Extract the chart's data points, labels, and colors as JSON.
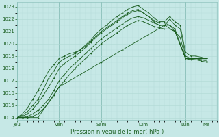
{
  "xlabel": "Pression niveau de la mer( hPa )",
  "bg_color": "#c6e8e6",
  "grid_color_minor": "#b0d8d4",
  "grid_color_major": "#90c4be",
  "line_color": "#1a5e20",
  "ylim": [
    1013.8,
    1023.4
  ],
  "yticks": [
    1014,
    1015,
    1016,
    1017,
    1018,
    1019,
    1020,
    1021,
    1022,
    1023
  ],
  "day_labels": [
    "Jeu",
    "Ven",
    "Sam",
    "Dim",
    "Lun",
    "Ma"
  ],
  "day_positions": [
    0,
    48,
    96,
    144,
    192,
    216
  ],
  "xlim": [
    0,
    222
  ],
  "lines": [
    {
      "x": [
        0,
        6,
        12,
        18,
        24,
        30,
        36,
        42,
        48,
        54,
        60,
        66,
        72,
        78,
        84,
        90,
        96,
        102,
        108,
        114,
        120,
        126,
        132,
        138,
        144,
        150,
        156,
        162,
        168,
        174,
        180,
        186,
        192,
        198,
        204,
        210,
        216
      ],
      "y": [
        1014.0,
        1014.3,
        1014.8,
        1015.5,
        1016.2,
        1017.0,
        1017.8,
        1018.3,
        1018.8,
        1019.0,
        1019.2,
        1019.3,
        1019.5,
        1019.8,
        1020.2,
        1020.6,
        1021.0,
        1021.3,
        1021.6,
        1021.9,
        1022.2,
        1022.5,
        1022.7,
        1022.8,
        1022.5,
        1022.2,
        1021.8,
        1021.5,
        1021.5,
        1022.0,
        1021.5,
        1021.2,
        1019.0,
        1018.8,
        1018.8,
        1018.7,
        1018.6
      ]
    },
    {
      "x": [
        0,
        6,
        12,
        18,
        24,
        30,
        36,
        42,
        48,
        54,
        60,
        66,
        72,
        78,
        84,
        90,
        96,
        102,
        108,
        114,
        120,
        126,
        132,
        138,
        144,
        150,
        156,
        162,
        168,
        174,
        180,
        186,
        192,
        198,
        204,
        210,
        216
      ],
      "y": [
        1014.0,
        1014.2,
        1014.5,
        1015.0,
        1015.5,
        1016.3,
        1017.2,
        1017.8,
        1018.5,
        1018.8,
        1019.0,
        1019.2,
        1019.5,
        1019.9,
        1020.3,
        1020.8,
        1021.2,
        1021.5,
        1021.9,
        1022.2,
        1022.5,
        1022.8,
        1023.0,
        1023.1,
        1022.8,
        1022.5,
        1022.1,
        1021.8,
        1021.8,
        1022.2,
        1021.8,
        1021.5,
        1019.3,
        1019.0,
        1019.0,
        1018.9,
        1018.8
      ]
    },
    {
      "x": [
        0,
        6,
        12,
        18,
        24,
        30,
        36,
        42,
        48,
        54,
        60,
        66,
        72,
        78,
        84,
        90,
        96,
        102,
        108,
        114,
        120,
        126,
        132,
        138,
        144,
        150,
        156,
        162,
        168,
        174,
        180,
        186,
        192,
        198,
        204,
        210,
        216
      ],
      "y": [
        1014.0,
        1014.1,
        1014.3,
        1014.7,
        1015.2,
        1015.8,
        1016.5,
        1017.2,
        1018.0,
        1018.4,
        1018.7,
        1019.0,
        1019.3,
        1019.7,
        1020.1,
        1020.5,
        1020.9,
        1021.2,
        1021.5,
        1021.8,
        1022.1,
        1022.4,
        1022.6,
        1022.7,
        1022.5,
        1022.2,
        1021.9,
        1021.7,
        1021.7,
        1021.5,
        1021.0,
        1020.5,
        1018.8,
        1018.7,
        1018.7,
        1018.6,
        1018.5
      ]
    },
    {
      "x": [
        0,
        6,
        12,
        18,
        24,
        30,
        36,
        42,
        48,
        54,
        60,
        66,
        72,
        78,
        84,
        90,
        96,
        102,
        108,
        114,
        120,
        126,
        132,
        138,
        144,
        150,
        156,
        162,
        168,
        174,
        180,
        192,
        204,
        216
      ],
      "y": [
        1014.0,
        1014.0,
        1014.1,
        1014.3,
        1014.6,
        1015.0,
        1015.5,
        1016.2,
        1017.0,
        1017.5,
        1018.0,
        1018.4,
        1018.8,
        1019.2,
        1019.6,
        1020.0,
        1020.4,
        1020.7,
        1021.0,
        1021.3,
        1021.6,
        1021.9,
        1022.1,
        1022.2,
        1022.1,
        1021.9,
        1021.7,
        1021.5,
        1021.5,
        1021.5,
        1021.2,
        1018.8,
        1018.8,
        1018.8
      ]
    },
    {
      "x": [
        0,
        6,
        12,
        18,
        24,
        30,
        36,
        42,
        48,
        54,
        60,
        66,
        72,
        78,
        84,
        90,
        96,
        102,
        108,
        114,
        120,
        126,
        132,
        138,
        144,
        150,
        156,
        162,
        168,
        174,
        180,
        192,
        204,
        216
      ],
      "y": [
        1014.0,
        1014.0,
        1014.0,
        1014.1,
        1014.3,
        1014.7,
        1015.2,
        1015.8,
        1016.5,
        1017.0,
        1017.5,
        1018.0,
        1018.4,
        1018.8,
        1019.2,
        1019.6,
        1020.0,
        1020.3,
        1020.6,
        1020.9,
        1021.2,
        1021.5,
        1021.7,
        1021.9,
        1021.8,
        1021.6,
        1021.4,
        1021.3,
        1021.2,
        1021.2,
        1021.0,
        1018.8,
        1018.7,
        1018.7
      ]
    },
    {
      "x": [
        0,
        24,
        48,
        72,
        96,
        120,
        144,
        168,
        180,
        192,
        204,
        216
      ],
      "y": [
        1014.0,
        1014.0,
        1016.5,
        1017.5,
        1018.5,
        1019.5,
        1020.5,
        1021.5,
        1021.0,
        1018.8,
        1018.8,
        1018.8
      ]
    }
  ]
}
